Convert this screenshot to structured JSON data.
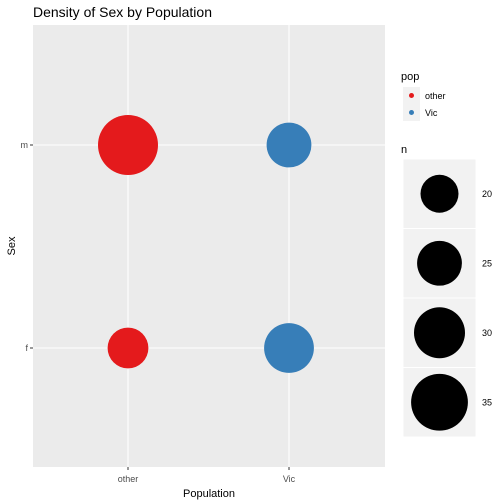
{
  "chart_data": {
    "type": "scatter",
    "title": "Density of Sex by Population",
    "xlabel": "Population",
    "ylabel": "Sex",
    "x_categories": [
      "other",
      "Vic"
    ],
    "y_categories": [
      "f",
      "m"
    ],
    "points": [
      {
        "x": "other",
        "y": "m",
        "n": 38,
        "pop": "other"
      },
      {
        "x": "Vic",
        "y": "m",
        "n": 25,
        "pop": "Vic"
      },
      {
        "x": "other",
        "y": "f",
        "n": 22,
        "pop": "other"
      },
      {
        "x": "Vic",
        "y": "f",
        "n": 29,
        "pop": "Vic"
      }
    ],
    "legend_color": {
      "title": "pop",
      "items": [
        {
          "label": "other",
          "color": "#e41a1c"
        },
        {
          "label": "Vic",
          "color": "#377eb8"
        }
      ]
    },
    "legend_size": {
      "title": "n",
      "values": [
        20,
        25,
        30,
        35
      ]
    },
    "size_domain": [
      20,
      38
    ],
    "grid": true,
    "legend_position": "right"
  }
}
